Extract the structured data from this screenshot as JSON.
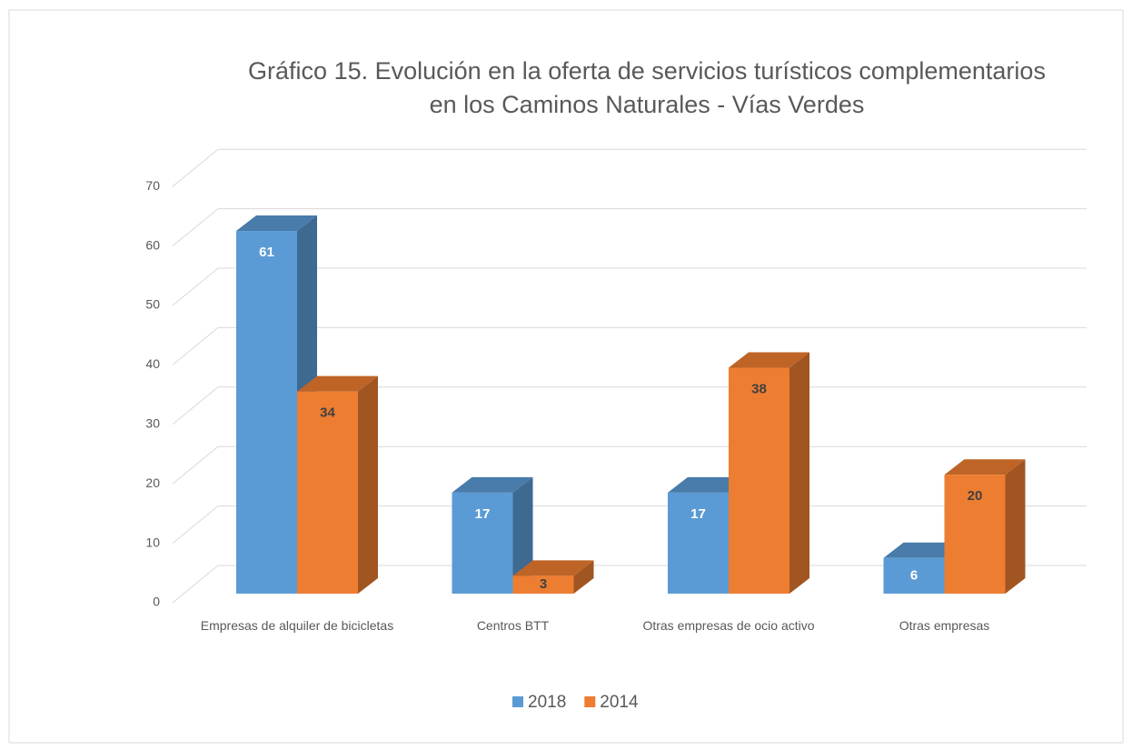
{
  "chart_data": {
    "type": "bar3d",
    "title": [
      "Gráfico 15. Evolución en la oferta de servicios turísticos complementarios",
      "en los Caminos Naturales - Vías Verdes"
    ],
    "categories": [
      "Empresas de alquiler de bicicletas",
      "Centros BTT",
      "Otras empresas de ocio activo",
      "Otras empresas"
    ],
    "series": [
      {
        "name": "2018",
        "color": "#5b9bd5",
        "values": [
          61,
          17,
          17,
          6
        ]
      },
      {
        "name": "2014",
        "color": "#ed7d31",
        "values": [
          34,
          3,
          38,
          20
        ]
      }
    ],
    "ylim": [
      0,
      70
    ],
    "yticks": [
      0,
      10,
      20,
      30,
      40,
      50,
      60,
      70
    ],
    "grid": true,
    "legend": "bottom"
  }
}
